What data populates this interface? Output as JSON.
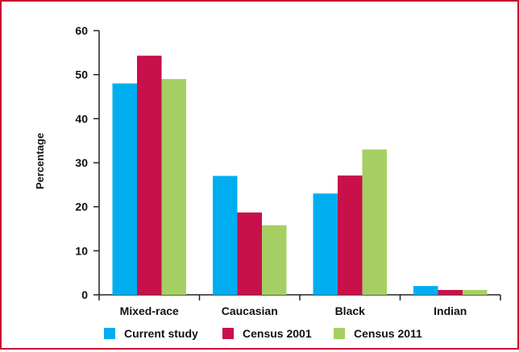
{
  "chart_data": {
    "type": "bar",
    "title": "",
    "xlabel": "",
    "ylabel": "Percentage",
    "ylim": [
      0,
      60
    ],
    "yticks": [
      0,
      10,
      20,
      30,
      40,
      50,
      60
    ],
    "grid": false,
    "legend_position": "bottom",
    "categories": [
      "Mixed-race",
      "Caucasian",
      "Black",
      "Indian"
    ],
    "series": [
      {
        "name": "Current study",
        "color": "#00aeef",
        "values": [
          48,
          27,
          23,
          2
        ]
      },
      {
        "name": "Census 2001",
        "color": "#c8104a",
        "values": [
          54.3,
          18.7,
          27.1,
          1.1
        ]
      },
      {
        "name": "Census 2011",
        "color": "#a6cf63",
        "values": [
          49,
          15.8,
          33,
          1.1
        ]
      }
    ]
  },
  "colors": {
    "frame_border": "#c8102e",
    "axis": "#222222"
  }
}
